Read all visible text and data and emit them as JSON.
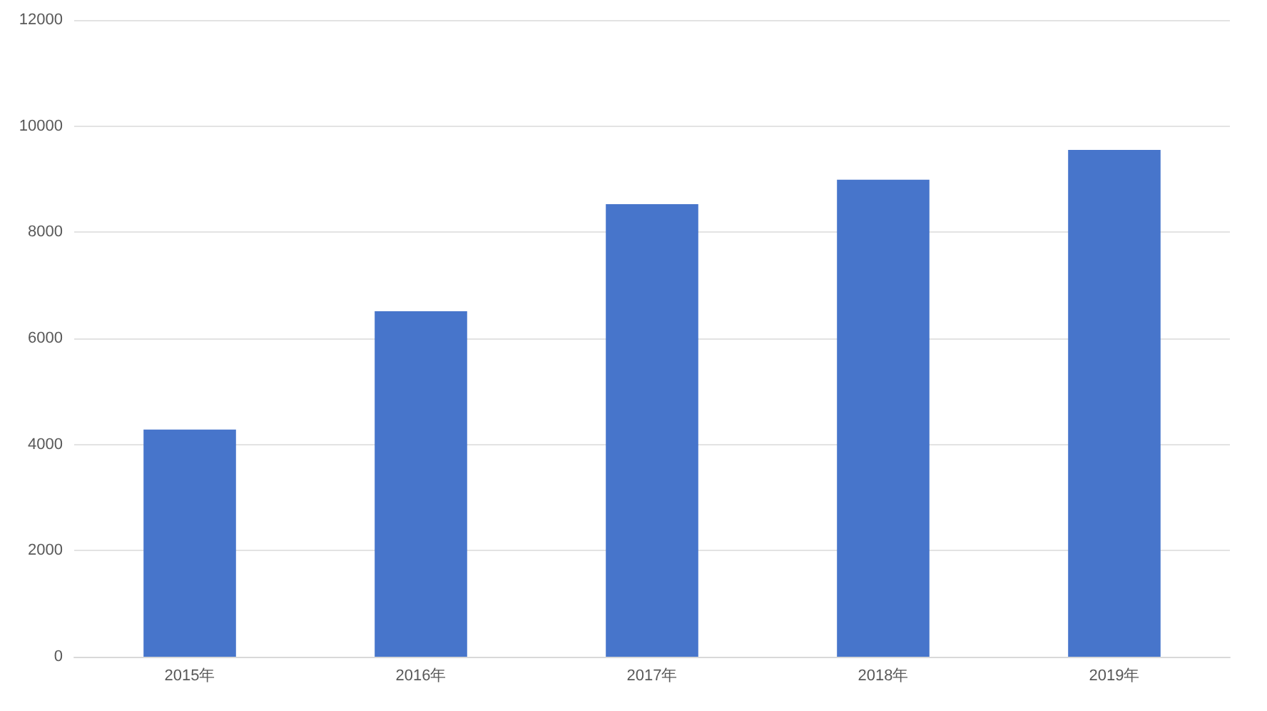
{
  "chart_data": {
    "type": "bar",
    "categories": [
      "2015年",
      "2016年",
      "2017年",
      "2018年",
      "2019年"
    ],
    "values": [
      4280,
      6510,
      8530,
      8990,
      9550
    ],
    "color": "#4775cb",
    "ylim": [
      0,
      12000
    ],
    "yticks": [
      0,
      2000,
      4000,
      6000,
      8000,
      10000,
      12000
    ],
    "grid": "y"
  }
}
